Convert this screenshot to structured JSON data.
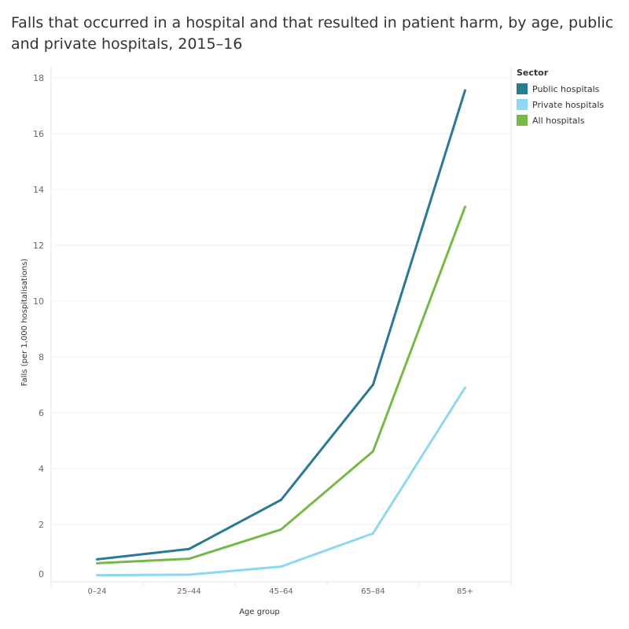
{
  "title": "Falls that occurred in a hospital and that resulted in patient harm, by age, public and private hospitals, 2015–16",
  "chart_data": {
    "type": "line",
    "title": "Falls that occurred in a hospital and that resulted in patient harm, by age, public and private hospitals, 2015–16",
    "xlabel": "Age group",
    "ylabel": "Falls (per 1,000 hospitalisations)",
    "categories": [
      "0–24",
      "25–44",
      "45–64",
      "65–84",
      "85+"
    ],
    "ylim": [
      0,
      18
    ],
    "yticks": [
      0,
      2,
      4,
      6,
      8,
      10,
      12,
      14,
      16,
      18
    ],
    "grid": true,
    "legend_title": "Sector",
    "legend_position": "top-right",
    "series": [
      {
        "name": "Public hospitals",
        "color": "#297a93",
        "values": [
          0.75,
          1.12,
          2.88,
          7.01,
          17.55
        ]
      },
      {
        "name": "Private hospitals",
        "color": "#8dd7f2",
        "values": [
          0.18,
          0.2,
          0.49,
          1.68,
          6.9
        ]
      },
      {
        "name": "All hospitals",
        "color": "#78b846",
        "values": [
          0.61,
          0.77,
          1.82,
          4.62,
          13.38
        ]
      }
    ]
  }
}
